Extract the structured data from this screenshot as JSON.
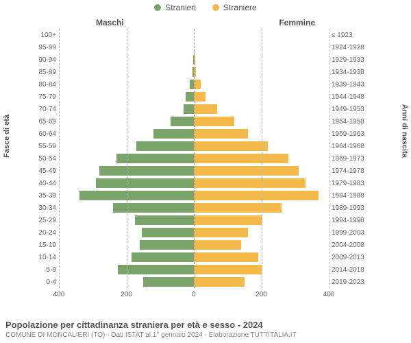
{
  "legend": {
    "male": {
      "label": "Stranieri",
      "color": "#7aa469"
    },
    "female": {
      "label": "Straniere",
      "color": "#f3b94b"
    }
  },
  "column_titles": {
    "left": "Maschi",
    "right": "Femmine"
  },
  "axis_titles": {
    "left": "Fasce di età",
    "right": "Anni di nascita"
  },
  "chart": {
    "type": "population-pyramid",
    "x_max": 400,
    "xticks_left": [
      400,
      200,
      0
    ],
    "xticks_right": [
      0,
      200,
      400
    ],
    "grid_color": "#bbbbbb",
    "background_color": "#ffffff",
    "age_labels": [
      "100+",
      "95-99",
      "90-94",
      "85-89",
      "80-84",
      "75-79",
      "70-74",
      "65-69",
      "60-64",
      "55-59",
      "50-54",
      "45-49",
      "40-44",
      "35-39",
      "30-34",
      "25-29",
      "20-24",
      "15-19",
      "10-14",
      "5-9",
      "0-4"
    ],
    "year_labels": [
      "≤ 1923",
      "1924-1928",
      "1929-1933",
      "1934-1938",
      "1939-1943",
      "1944-1948",
      "1949-1953",
      "1954-1958",
      "1959-1963",
      "1964-1968",
      "1969-1973",
      "1974-1978",
      "1979-1983",
      "1984-1988",
      "1989-1993",
      "1994-1998",
      "1999-2003",
      "2004-2008",
      "2009-2013",
      "2014-2018",
      "2019-2023"
    ],
    "male": [
      0,
      0,
      3,
      5,
      12,
      25,
      30,
      70,
      120,
      170,
      230,
      280,
      290,
      340,
      240,
      175,
      155,
      160,
      185,
      225,
      150
    ],
    "female": [
      0,
      0,
      5,
      7,
      20,
      35,
      70,
      120,
      160,
      220,
      280,
      310,
      330,
      370,
      260,
      200,
      160,
      140,
      190,
      200,
      150
    ],
    "bar_colors": {
      "male": "#7aa469",
      "female": "#f3b94b"
    },
    "label_fontsize": 10,
    "legend_fontsize": 12
  },
  "footer": {
    "title": "Popolazione per cittadinanza straniera per età e sesso - 2024",
    "subtitle": "COMUNE DI MONCALIERI (TO) - Dati ISTAT al 1° gennaio 2024 - Elaborazione TUTTITALIA.IT"
  }
}
